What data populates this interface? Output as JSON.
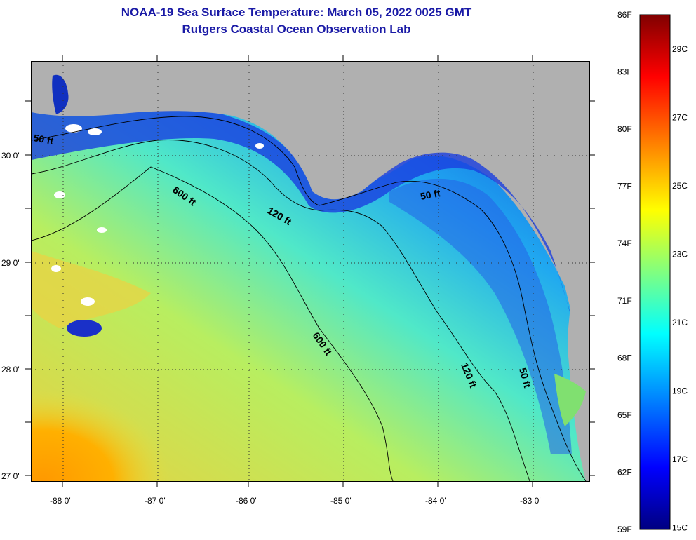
{
  "title": {
    "line1": "NOAA-19 Sea Surface Temperature:  March 05, 2022 0025 GMT",
    "line2": "Rutgers Coastal Ocean Observation Lab"
  },
  "map": {
    "lat_labels": [
      "30 0'",
      "29 0'",
      "28 0'",
      "27 0'"
    ],
    "lon_labels": [
      "-88 0'",
      "-87 0'",
      "-86 0'",
      "-85 0'",
      "-84 0'",
      "-83 0'"
    ],
    "contour_labels": [
      "50 ft",
      "600 ft",
      "120 ft",
      "50 ft",
      "600 ft",
      "120 ft",
      "50 ft"
    ],
    "land_color": "#b0b0b0",
    "grid": "dotted"
  },
  "colorbar": {
    "fahrenheit_labels": [
      "86F",
      "83F",
      "80F",
      "77F",
      "74F",
      "71F",
      "68F",
      "65F",
      "62F",
      "59F"
    ],
    "celsius_labels": [
      "29C",
      "27C",
      "25C",
      "23C",
      "21C",
      "19C",
      "17C",
      "15C"
    ],
    "colors": [
      "#800000",
      "#ff0000",
      "#ff8000",
      "#ffff00",
      "#80ff80",
      "#00ffff",
      "#0080ff",
      "#0000ff",
      "#000080"
    ]
  }
}
